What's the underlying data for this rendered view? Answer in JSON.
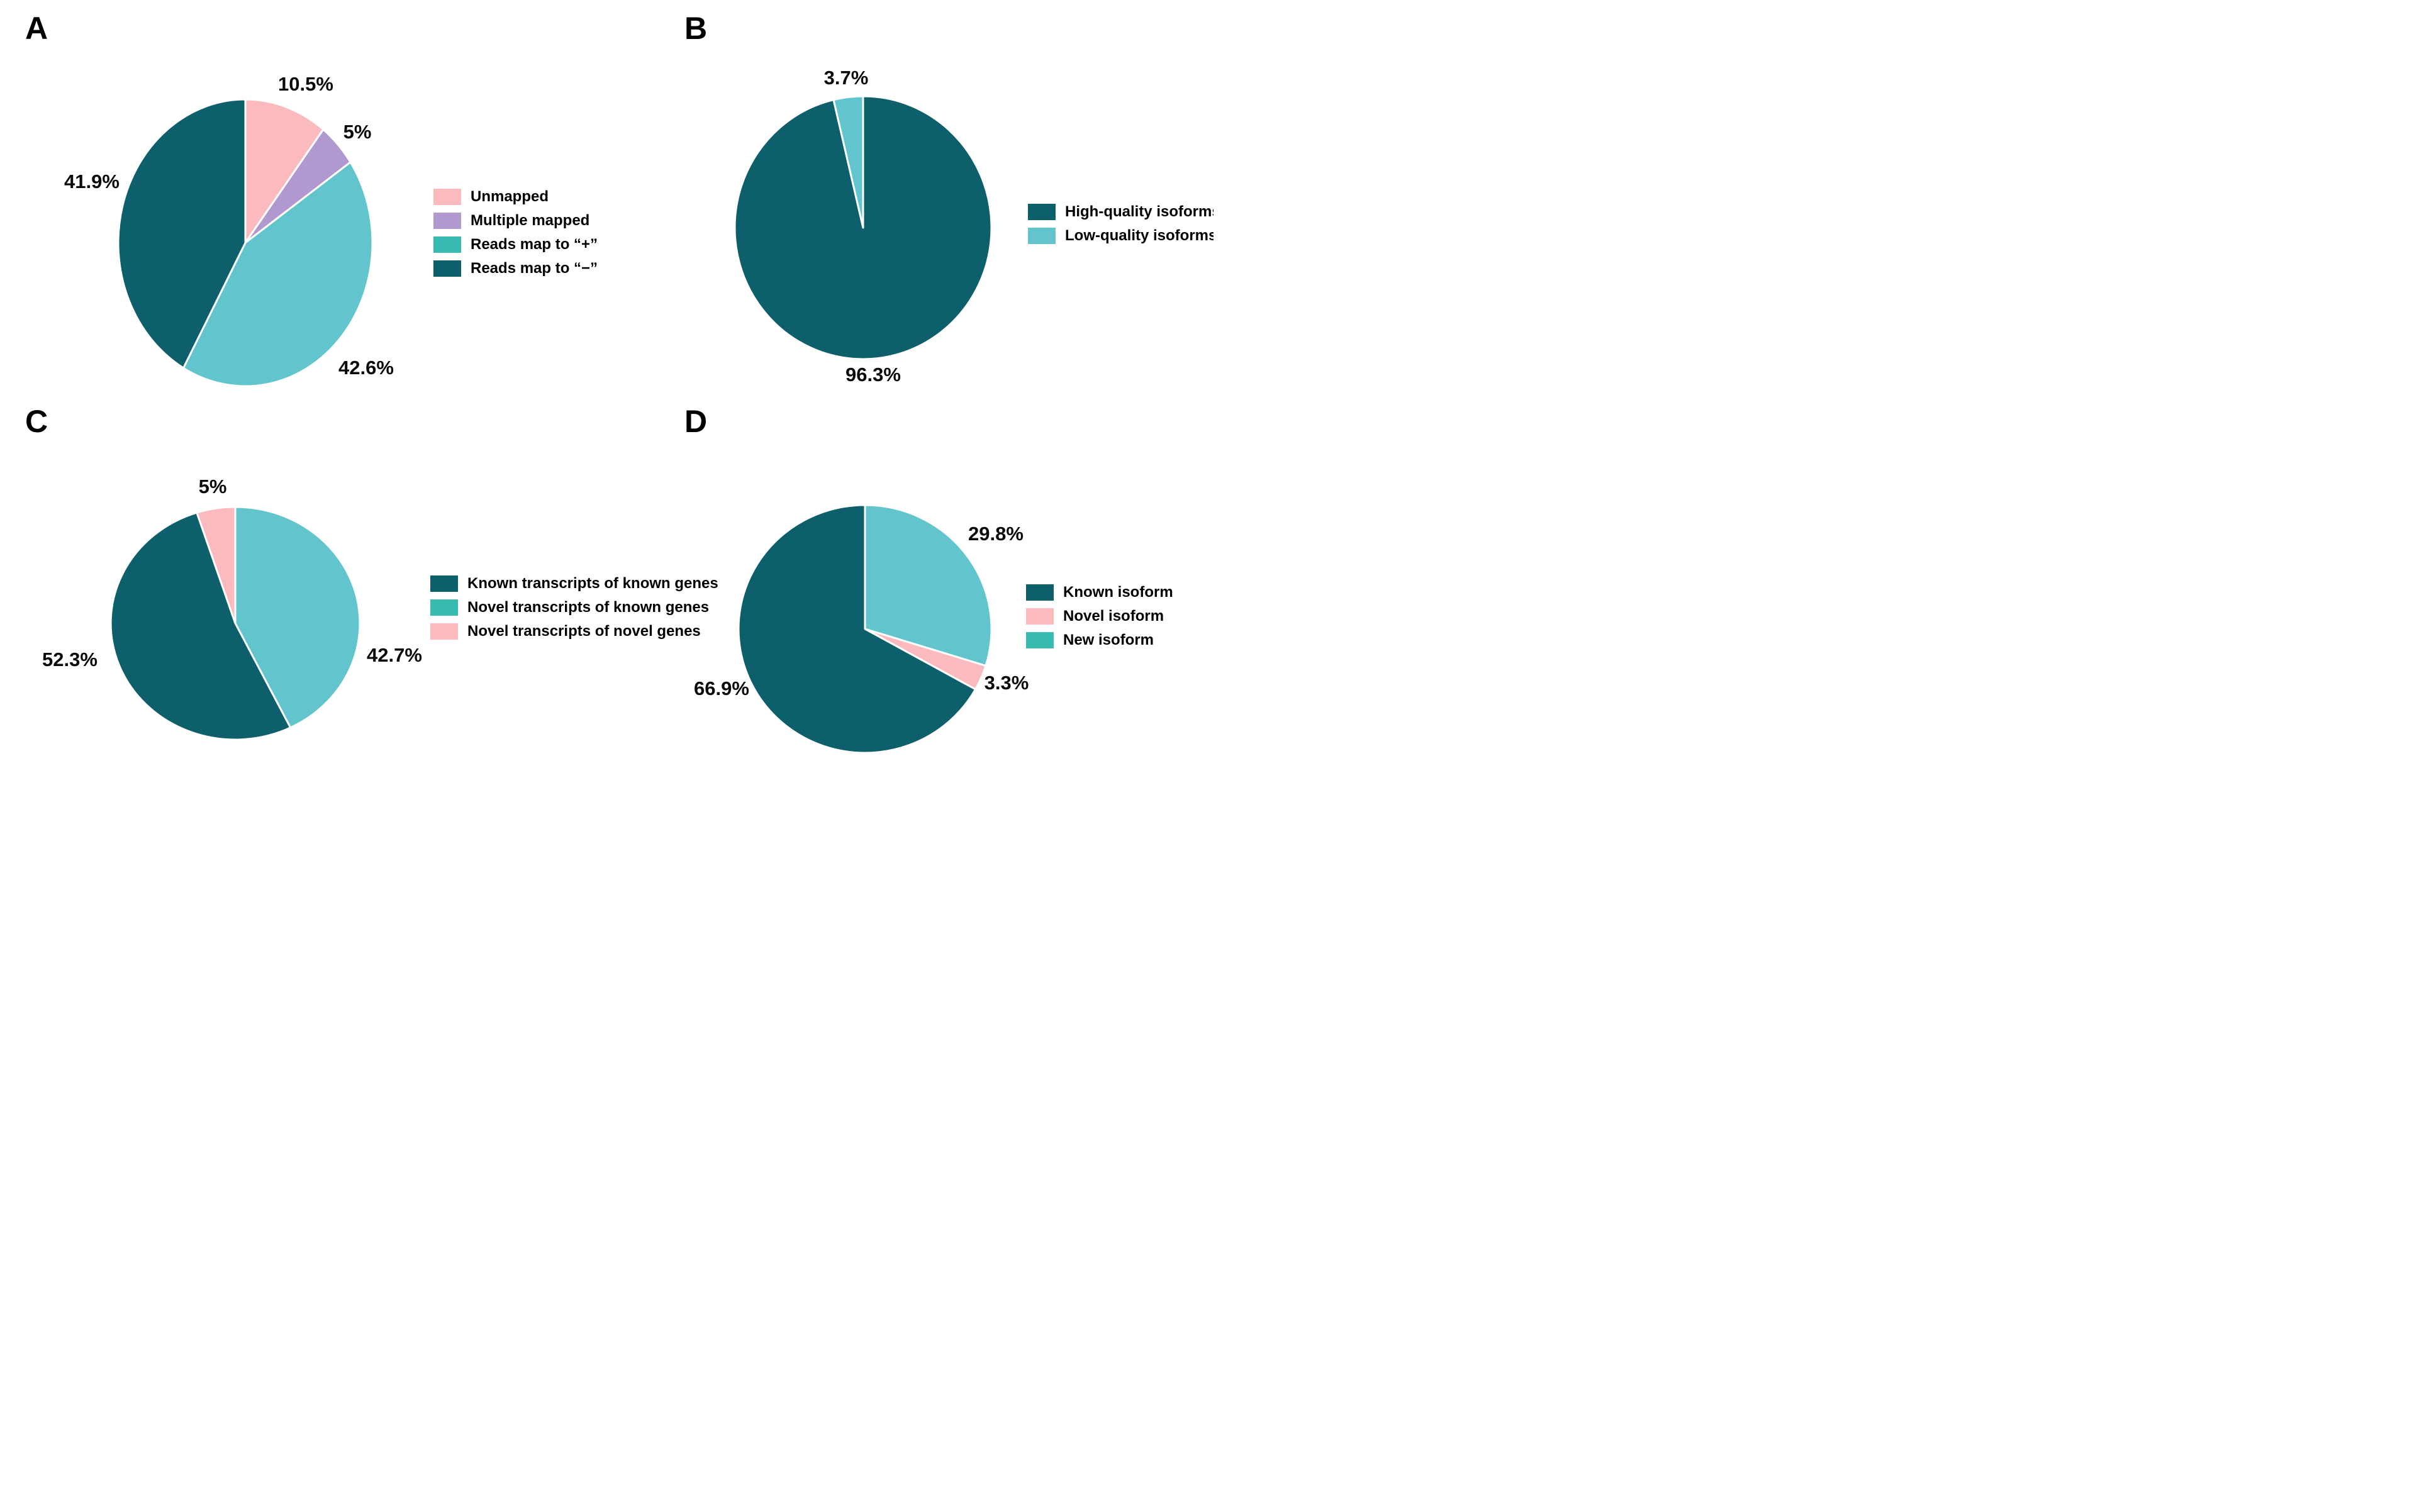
{
  "figure": {
    "background": "#FFFFFF",
    "description": "Four pie charts labeled A, B, C, D"
  },
  "colors": {
    "dark_teal": "#0E5F6C",
    "light_cyan": "#62C5CE",
    "teal": "#38BCB2",
    "pink": "#FABABE",
    "purple": "#B199CF",
    "slice_border": "#FFFFFF",
    "text": "#000000"
  },
  "chart_data": [
    {
      "type": "pie",
      "panel_letter": "A",
      "start_angle_deg": 0,
      "direction": "clockwise",
      "legend_position": "right",
      "slices": [
        {
          "label": "Unmapped",
          "value": 10.5,
          "pct_label": "10.5%",
          "color": "#FABABE"
        },
        {
          "label": "Multiple mapped",
          "value": 5,
          "pct_label": "5%",
          "color": "#B199CF"
        },
        {
          "label": "Reads map to “+”",
          "value": 42.6,
          "pct_label": "42.6%",
          "color": "#62C5CE"
        },
        {
          "label": "Reads map to “−”",
          "value": 41.9,
          "pct_label": "41.9%",
          "color": "#0E5F6C"
        }
      ],
      "legend": [
        {
          "label": "Unmapped",
          "color": "#FABABE"
        },
        {
          "label": "Multiple mapped",
          "color": "#B199CF"
        },
        {
          "label": "Reads map to “+”",
          "color": "#38BCB2"
        },
        {
          "label": "Reads map to “−”",
          "color": "#0E5F6C"
        }
      ]
    },
    {
      "type": "pie",
      "panel_letter": "B",
      "start_angle_deg": 0,
      "direction": "clockwise",
      "legend_position": "right",
      "slices": [
        {
          "label": "High-quality isoforms",
          "value": 96.3,
          "pct_label": "96.3%",
          "color": "#0E5F6C"
        },
        {
          "label": "Low-quality isoforms",
          "value": 3.7,
          "pct_label": "3.7%",
          "color": "#62C5CE"
        }
      ],
      "legend": [
        {
          "label": "High-quality isoforms",
          "color": "#0E5F6C"
        },
        {
          "label": "Low-quality isoforms",
          "color": "#62C5CE"
        }
      ]
    },
    {
      "type": "pie",
      "panel_letter": "C",
      "start_angle_deg": 0,
      "direction": "clockwise",
      "legend_position": "right",
      "slices": [
        {
          "label": "Novel transcripts of known genes",
          "value": 42.7,
          "pct_label": "42.7%",
          "color": "#62C5CE"
        },
        {
          "label": "Known transcripts of known genes",
          "value": 52.3,
          "pct_label": "52.3%",
          "color": "#0E5F6C"
        },
        {
          "label": "Novel transcripts of novel genes",
          "value": 5,
          "pct_label": "5%",
          "color": "#FABABE"
        }
      ],
      "legend": [
        {
          "label": "Known transcripts of known genes",
          "color": "#0E5F6C"
        },
        {
          "label": "Novel transcripts of known genes",
          "color": "#38BCB2"
        },
        {
          "label": "Novel transcripts of novel genes",
          "color": "#FABABE"
        }
      ]
    },
    {
      "type": "pie",
      "panel_letter": "D",
      "start_angle_deg": 0,
      "direction": "clockwise",
      "legend_position": "right",
      "slices": [
        {
          "label": "New isoform",
          "value": 29.8,
          "pct_label": "29.8%",
          "color": "#62C5CE"
        },
        {
          "label": "Novel isoform",
          "value": 3.3,
          "pct_label": "3.3%",
          "color": "#FABABE"
        },
        {
          "label": "Known isoform",
          "value": 66.9,
          "pct_label": "66.9%",
          "color": "#0E5F6C"
        }
      ],
      "legend": [
        {
          "label": "Known isoform",
          "color": "#0E5F6C"
        },
        {
          "label": "Novel isoform",
          "color": "#FABABE"
        },
        {
          "label": "New isoform",
          "color": "#38BCB2"
        }
      ]
    }
  ]
}
